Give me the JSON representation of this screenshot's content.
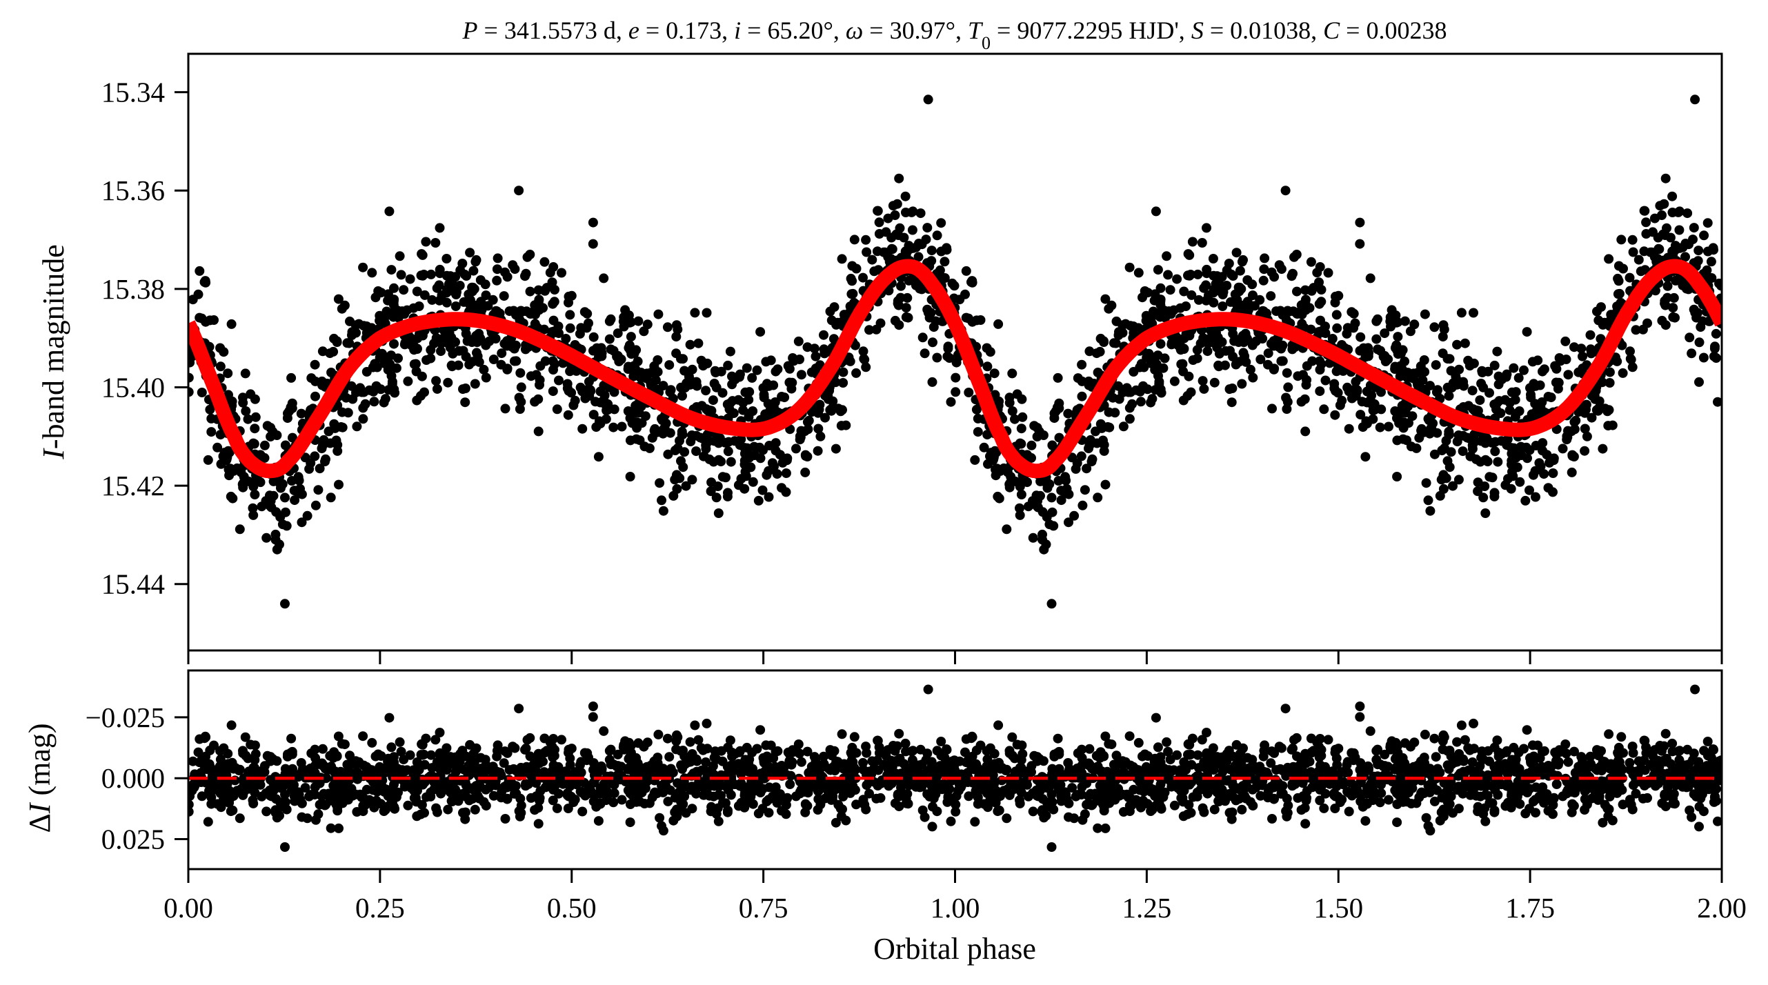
{
  "chart_data": [
    {
      "type": "scatter",
      "panel": "light-curve",
      "title": {
        "parts": [
          {
            "text": "P",
            "italic": true
          },
          {
            "text": " = 341.5573 d, "
          },
          {
            "text": "e",
            "italic": true
          },
          {
            "text": " = 0.173, "
          },
          {
            "text": "i",
            "italic": true
          },
          {
            "text": " = 65.20°, "
          },
          {
            "text": "ω",
            "italic": true
          },
          {
            "text": " = 30.97°, "
          },
          {
            "text": "T",
            "italic": true
          },
          {
            "text": "0",
            "sub": true
          },
          {
            "text": " = 9077.2295 HJD', "
          },
          {
            "text": "S",
            "italic": true
          },
          {
            "text": " = 0.01038, "
          },
          {
            "text": "C",
            "italic": true
          },
          {
            "text": " = 0.00238"
          }
        ]
      },
      "xlabel": "Orbital phase",
      "ylabel_italic": "I",
      "ylabel": "-band magnitude",
      "xlim": [
        0.0,
        2.0
      ],
      "ylim": [
        15.4535,
        15.3322
      ],
      "y_inverted": true,
      "yticks": [
        15.34,
        15.36,
        15.38,
        15.4,
        15.42,
        15.44
      ],
      "ytick_labels": [
        "15.34",
        "15.36",
        "15.38",
        "15.40",
        "15.42",
        "15.44"
      ],
      "grid": false,
      "observations": {
        "color": "#000000",
        "points_per_cycle": 1400,
        "cycles": 2,
        "scatter_sigma_mag": 0.0085,
        "seed": 7,
        "outliers": [
          {
            "phase": 0.965,
            "mag": 15.3415
          },
          {
            "phase": 1.965,
            "mag": 15.3415
          },
          {
            "phase": 0.431,
            "mag": 15.36
          },
          {
            "phase": 1.431,
            "mag": 15.36
          },
          {
            "phase": 0.528,
            "mag": 15.3665
          },
          {
            "phase": 1.528,
            "mag": 15.3665
          },
          {
            "phase": 0.126,
            "mag": 15.444
          },
          {
            "phase": 1.126,
            "mag": 15.444
          }
        ]
      },
      "model": {
        "name": "fit",
        "color": "#ff0000",
        "phase": [
          0.0,
          0.03,
          0.06,
          0.08,
          0.105,
          0.13,
          0.17,
          0.21,
          0.25,
          0.3,
          0.36,
          0.42,
          0.48,
          0.54,
          0.6,
          0.66,
          0.72,
          0.76,
          0.8,
          0.84,
          0.88,
          0.915,
          0.945,
          0.97,
          1.0
        ],
        "mag": [
          15.387,
          15.3985,
          15.41,
          15.415,
          15.417,
          15.415,
          15.406,
          15.396,
          15.39,
          15.387,
          15.3862,
          15.388,
          15.392,
          15.397,
          15.402,
          15.4065,
          15.4085,
          15.408,
          15.404,
          15.3955,
          15.384,
          15.377,
          15.3755,
          15.379,
          15.387
        ]
      }
    },
    {
      "type": "scatter",
      "panel": "residuals",
      "xlabel": "Orbital phase",
      "ylabel_delta": "Δ",
      "ylabel_italic": "I",
      "ylabel": " (mag)",
      "xlim": [
        0.0,
        2.0
      ],
      "ylim": [
        0.0373,
        -0.0442
      ],
      "y_inverted": true,
      "xticks": [
        0.0,
        0.25,
        0.5,
        0.75,
        1.0,
        1.25,
        1.5,
        1.75,
        2.0
      ],
      "xtick_labels": [
        "0.00",
        "0.25",
        "0.50",
        "0.75",
        "1.00",
        "1.25",
        "1.50",
        "1.75",
        "2.00"
      ],
      "yticks": [
        -0.025,
        0.0,
        0.025
      ],
      "ytick_labels": [
        "−0.025",
        "0.000",
        "0.025"
      ],
      "grid": false,
      "zero_line": {
        "value": 0.0,
        "color": "#ff0000",
        "style": "dashed"
      },
      "residual_points": {
        "color": "#000000",
        "description_source": "observations minus model"
      }
    }
  ]
}
